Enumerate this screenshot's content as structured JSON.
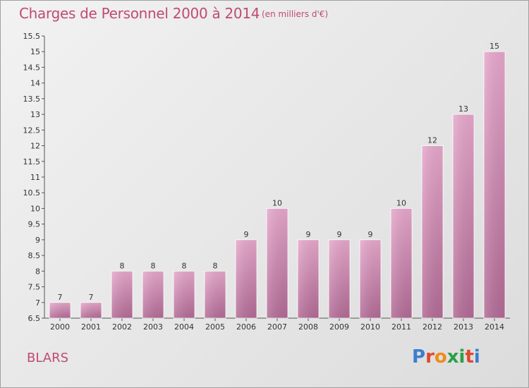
{
  "header": {
    "title": "Charges de Personnel 2000 à 2014",
    "subtitle": "(en milliers d'€)"
  },
  "footer": {
    "commune": "BLARS",
    "logo_text": "Proxiti"
  },
  "chart_data": {
    "type": "bar",
    "categories": [
      "2000",
      "2001",
      "2002",
      "2003",
      "2004",
      "2005",
      "2006",
      "2007",
      "2008",
      "2009",
      "2010",
      "2011",
      "2012",
      "2013",
      "2014"
    ],
    "values": [
      7,
      7,
      8,
      8,
      8,
      8,
      9,
      10,
      9,
      9,
      9,
      10,
      12,
      13,
      15
    ],
    "title": "Charges de Personnel 2000 à 2014",
    "subtitle": "(en milliers d'€)",
    "ylim": [
      6.5,
      15.5
    ],
    "yticks": [
      "6.5",
      "7",
      "7.5",
      "8",
      "8.5",
      "9",
      "9.5",
      "10",
      "10.5",
      "11",
      "11.5",
      "12",
      "12.5",
      "13",
      "13.5",
      "14",
      "14.5",
      "15",
      "15.5"
    ],
    "grid": false,
    "bar_color": "#d98fb8"
  }
}
